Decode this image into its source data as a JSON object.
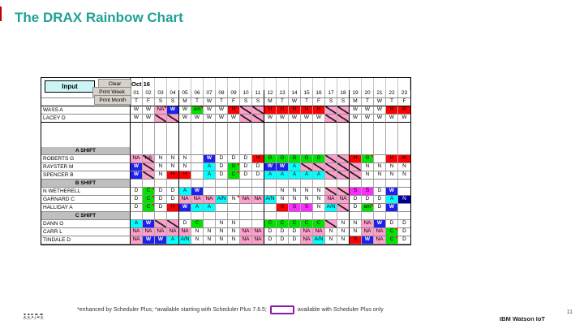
{
  "slide": {
    "title": "The DRAX Rainbow Chart",
    "footnote_left": "*enhanced by Scheduler Plus; *available starting with Scheduler Plus 7.6.5;",
    "footnote_right": "available with Scheduler Plus only",
    "brand": "IBM Watson IoT",
    "page_number": "11",
    "logo": "IBM",
    "accent_color": "#21a095",
    "legend_swatch_color": "#8c1aa8"
  },
  "toolbar": {
    "input_label": "Input",
    "clear_label": "Clear",
    "print_week_label": "Print Week",
    "print_month_label": "Print Month"
  },
  "schedule": {
    "month_label": "Oct 16",
    "day_numbers": [
      "01",
      "02",
      "03",
      "04",
      "05",
      "06",
      "07",
      "08",
      "09",
      "10",
      "11",
      "12",
      "13",
      "14",
      "15",
      "16",
      "17",
      "18",
      "19",
      "20",
      "21",
      "22",
      "23"
    ],
    "weekdays": [
      "T",
      "F",
      "S",
      "S",
      "M",
      "T",
      "W",
      "T",
      "F",
      "S",
      "S",
      "M",
      "T",
      "W",
      "T",
      "F",
      "S",
      "S",
      "M",
      "T",
      "W",
      "T",
      "F"
    ],
    "cell_colors": {
      "w": "#ffffff",
      "p": "#ff9fcb",
      "b": "#1f1fef",
      "n": "#000099",
      "c": "#00ffff",
      "g": "#00e400",
      "r": "#ff0000",
      "m": "#ff2bff",
      "h": "pink-diagonal-hatch"
    },
    "rows": [
      {
        "label": "WASS A",
        "type": "person",
        "cells": [
          [
            "W",
            "w"
          ],
          [
            "W",
            "w"
          ],
          [
            "NA",
            "p",
            1
          ],
          [
            "W",
            "b"
          ],
          [
            "W",
            "w"
          ],
          [
            "am",
            "g",
            1
          ],
          [
            "W",
            "w"
          ],
          [
            "W",
            "w"
          ],
          [
            "H",
            "r"
          ],
          [
            "",
            "h"
          ],
          [
            "",
            "h"
          ],
          [
            "H",
            "r"
          ],
          [
            "H",
            "r"
          ],
          [
            "H",
            "r"
          ],
          [
            "H",
            "r"
          ],
          [
            "H",
            "r"
          ],
          [
            "",
            "h"
          ],
          [
            "",
            "h"
          ],
          [
            "W",
            "w"
          ],
          [
            "W",
            "w"
          ],
          [
            "W",
            "w"
          ],
          [
            "H",
            "r"
          ],
          [
            "H",
            "r"
          ]
        ]
      },
      {
        "label": "LACEY D",
        "type": "person",
        "heavy": 1,
        "cells": [
          [
            "W",
            "w"
          ],
          [
            "W",
            "w"
          ],
          [
            "",
            "h"
          ],
          [
            "",
            "h"
          ],
          [
            "W",
            "w"
          ],
          [
            "W",
            "w"
          ],
          [
            "W",
            "w"
          ],
          [
            "W",
            "w"
          ],
          [
            "W",
            "w"
          ],
          [
            "",
            "h"
          ],
          [
            "",
            "h"
          ],
          [
            "W",
            "w"
          ],
          [
            "W",
            "w"
          ],
          [
            "W",
            "w"
          ],
          [
            "W",
            "w"
          ],
          [
            "W",
            "w"
          ],
          [
            "",
            "h"
          ],
          [
            "",
            "h"
          ],
          [
            "W",
            "w"
          ],
          [
            "W",
            "w"
          ],
          [
            "W",
            "w"
          ],
          [
            "W",
            "w"
          ],
          [
            "W",
            "w"
          ]
        ]
      },
      {
        "label": "",
        "type": "spacer"
      },
      {
        "label": "",
        "type": "spacer"
      },
      {
        "label": "",
        "type": "spacer"
      },
      {
        "label": "A SHIFT",
        "type": "shift"
      },
      {
        "label": "ROBERTS G",
        "type": "person",
        "cells": [
          [
            "NA",
            "p"
          ],
          [
            "NA",
            "h"
          ],
          [
            "N",
            "w"
          ],
          [
            "N",
            "w"
          ],
          [
            "N",
            "w"
          ],
          [
            "",
            "w"
          ],
          [
            "W",
            "b"
          ],
          [
            "D",
            "w"
          ],
          [
            "D",
            "w"
          ],
          [
            "D",
            "w"
          ],
          [
            "H",
            "r"
          ],
          [
            "G",
            "g"
          ],
          [
            "G",
            "g"
          ],
          [
            "G",
            "g"
          ],
          [
            "G",
            "g"
          ],
          [
            "G",
            "g"
          ],
          [
            "",
            "h"
          ],
          [
            "",
            "h"
          ],
          [
            "H",
            "r"
          ],
          [
            "G",
            "g",
            1
          ],
          [
            "",
            "w"
          ],
          [
            "H",
            "r"
          ],
          [
            "H",
            "r"
          ]
        ]
      },
      {
        "label": "RAYSTER M",
        "type": "person",
        "cells": [
          [
            "W",
            "b"
          ],
          [
            "",
            "h"
          ],
          [
            "N",
            "w"
          ],
          [
            "N",
            "w"
          ],
          [
            "N",
            "w"
          ],
          [
            "",
            "w"
          ],
          [
            "A",
            "c"
          ],
          [
            "D",
            "w"
          ],
          [
            "G",
            "g",
            1
          ],
          [
            "D",
            "w"
          ],
          [
            "D",
            "w"
          ],
          [
            "W",
            "b"
          ],
          [
            "W",
            "b"
          ],
          [
            "A",
            "c"
          ],
          [
            "",
            "h"
          ],
          [
            "",
            "h"
          ],
          [
            "",
            "h"
          ],
          [
            "",
            "h"
          ],
          [
            "",
            "h"
          ],
          [
            "N",
            "w"
          ],
          [
            "N",
            "w"
          ],
          [
            "N",
            "w"
          ],
          [
            "N",
            "w"
          ]
        ]
      },
      {
        "label": "SPENCER B",
        "type": "person",
        "cells": [
          [
            "W",
            "b"
          ],
          [
            "",
            "h"
          ],
          [
            "N",
            "w"
          ],
          [
            "H",
            "r"
          ],
          [
            "H",
            "r"
          ],
          [
            "",
            "w"
          ],
          [
            "A",
            "c"
          ],
          [
            "D",
            "w"
          ],
          [
            "C",
            "g",
            1
          ],
          [
            "D",
            "w"
          ],
          [
            "D",
            "w"
          ],
          [
            "A",
            "c"
          ],
          [
            "A",
            "c"
          ],
          [
            "A",
            "c"
          ],
          [
            "A",
            "c"
          ],
          [
            "A",
            "c"
          ],
          [
            "",
            "h"
          ],
          [
            "",
            "h"
          ],
          [
            "",
            "h"
          ],
          [
            "N",
            "w"
          ],
          [
            "N",
            "w"
          ],
          [
            "N",
            "w"
          ],
          [
            "N",
            "w"
          ]
        ]
      },
      {
        "label": "B SHIFT",
        "type": "shift"
      },
      {
        "label": "N WETHERELL",
        "type": "person",
        "cells": [
          [
            "D",
            "w"
          ],
          [
            "C",
            "g",
            1
          ],
          [
            "D",
            "w"
          ],
          [
            "D",
            "w"
          ],
          [
            "A",
            "c"
          ],
          [
            "W",
            "b"
          ],
          [
            "",
            "w"
          ],
          [
            "",
            "w"
          ],
          [
            "",
            "w"
          ],
          [
            "",
            "w"
          ],
          [
            "",
            "w"
          ],
          [
            "",
            "w"
          ],
          [
            "N",
            "w"
          ],
          [
            "N",
            "w"
          ],
          [
            "N",
            "w"
          ],
          [
            "N",
            "w"
          ],
          [
            "",
            "h"
          ],
          [
            "",
            "h"
          ],
          [
            "S",
            "m"
          ],
          [
            "S",
            "m"
          ],
          [
            "D",
            "w"
          ],
          [
            "W",
            "b"
          ],
          [
            "",
            "w"
          ]
        ]
      },
      {
        "label": "GARNARD C",
        "type": "person",
        "cells": [
          [
            "D",
            "w"
          ],
          [
            "C",
            "g",
            1
          ],
          [
            "D",
            "w"
          ],
          [
            "D",
            "w"
          ],
          [
            "NA",
            "p"
          ],
          [
            "NA",
            "p"
          ],
          [
            "NA",
            "p"
          ],
          [
            "A/N",
            "c"
          ],
          [
            "N",
            "w",
            1
          ],
          [
            "NA",
            "p"
          ],
          [
            "NA",
            "p"
          ],
          [
            "A/N",
            "c"
          ],
          [
            "N",
            "w"
          ],
          [
            "N",
            "w"
          ],
          [
            "N",
            "w"
          ],
          [
            "N",
            "w"
          ],
          [
            "NA",
            "p"
          ],
          [
            "NA",
            "p"
          ],
          [
            "D",
            "w"
          ],
          [
            "D",
            "w"
          ],
          [
            "D",
            "w"
          ],
          [
            "A",
            "c"
          ],
          [
            "N",
            "n"
          ]
        ]
      },
      {
        "label": "HALLIDAY A",
        "type": "person",
        "cells": [
          [
            "D",
            "w"
          ],
          [
            "C",
            "g",
            1
          ],
          [
            "D",
            "w"
          ],
          [
            "H",
            "r"
          ],
          [
            "W",
            "b"
          ],
          [
            "A",
            "c"
          ],
          [
            "A",
            "c"
          ],
          [
            "",
            "w"
          ],
          [
            "",
            "w"
          ],
          [
            "",
            "w"
          ],
          [
            "",
            "w"
          ],
          [
            "",
            "w"
          ],
          [
            "S",
            "r"
          ],
          [
            "S",
            "m"
          ],
          [
            "S",
            "m"
          ],
          [
            "N",
            "w"
          ],
          [
            "A/N",
            "c"
          ],
          [
            "",
            "h"
          ],
          [
            "D",
            "w"
          ],
          [
            "am",
            "g",
            1
          ],
          [
            "D",
            "w"
          ],
          [
            "W",
            "b"
          ],
          [
            "",
            "w"
          ]
        ]
      },
      {
        "label": "C SHIFT",
        "type": "shift"
      },
      {
        "label": "DANN O",
        "type": "person",
        "cells": [
          [
            "A",
            "c"
          ],
          [
            "W",
            "b"
          ],
          [
            "",
            "h"
          ],
          [
            "",
            "h"
          ],
          [
            "D",
            "w"
          ],
          [
            "C",
            "g"
          ],
          [
            "",
            "w"
          ],
          [
            "N",
            "w"
          ],
          [
            "N",
            "w"
          ],
          [
            "",
            "w"
          ],
          [
            "",
            "w"
          ],
          [
            "C",
            "g"
          ],
          [
            "C",
            "g"
          ],
          [
            "C",
            "g"
          ],
          [
            "C",
            "g"
          ],
          [
            "C",
            "g"
          ],
          [
            "",
            "h"
          ],
          [
            "N",
            "w"
          ],
          [
            "N",
            "w"
          ],
          [
            "NA",
            "p"
          ],
          [
            "W",
            "b"
          ],
          [
            "D",
            "w"
          ],
          [
            "D",
            "w"
          ]
        ]
      },
      {
        "label": "CARR L",
        "type": "person",
        "cells": [
          [
            "NA",
            "p"
          ],
          [
            "NA",
            "p"
          ],
          [
            "NA",
            "p"
          ],
          [
            "NA",
            "p"
          ],
          [
            "NA",
            "p"
          ],
          [
            "N",
            "w"
          ],
          [
            "N",
            "w"
          ],
          [
            "N",
            "w"
          ],
          [
            "N",
            "w"
          ],
          [
            "NA",
            "p"
          ],
          [
            "NA",
            "p"
          ],
          [
            "D",
            "w"
          ],
          [
            "D",
            "w"
          ],
          [
            "D",
            "w"
          ],
          [
            "NA",
            "p"
          ],
          [
            "NA",
            "p"
          ],
          [
            "N",
            "w"
          ],
          [
            "N",
            "w"
          ],
          [
            "N",
            "w"
          ],
          [
            "NA",
            "p"
          ],
          [
            "NA",
            "p"
          ],
          [
            "C",
            "g",
            1
          ],
          [
            "D",
            "w"
          ]
        ]
      },
      {
        "label": "TINDALE D",
        "type": "person",
        "cells": [
          [
            "NA",
            "p"
          ],
          [
            "W",
            "b"
          ],
          [
            "W",
            "b"
          ],
          [
            "A",
            "c"
          ],
          [
            "A/N",
            "c"
          ],
          [
            "N",
            "w"
          ],
          [
            "N",
            "w"
          ],
          [
            "N",
            "w"
          ],
          [
            "N",
            "w"
          ],
          [
            "NA",
            "p"
          ],
          [
            "NA",
            "p"
          ],
          [
            "D",
            "w"
          ],
          [
            "D",
            "w"
          ],
          [
            "D",
            "w"
          ],
          [
            "NA",
            "p"
          ],
          [
            "A/N",
            "c"
          ],
          [
            "N",
            "w"
          ],
          [
            "N",
            "w"
          ],
          [
            "S",
            "r"
          ],
          [
            "W",
            "b"
          ],
          [
            "NA",
            "p"
          ],
          [
            "C",
            "g",
            1
          ],
          [
            "D",
            "w"
          ]
        ]
      }
    ]
  }
}
